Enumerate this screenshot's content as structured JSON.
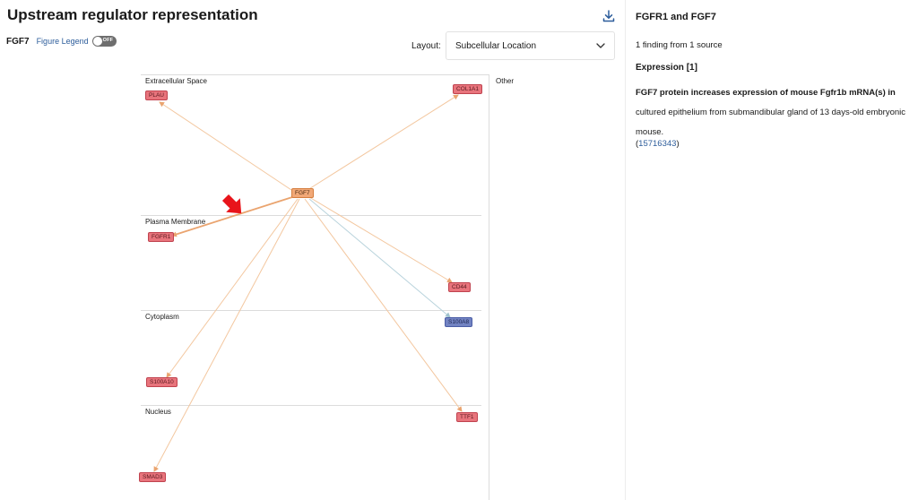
{
  "header": {
    "title": "Upstream regulator representation",
    "download_icon": "download-icon"
  },
  "toolbar": {
    "regulator": "FGF7",
    "legend_label": "Figure Legend",
    "legend_toggle_state": "OFF",
    "layout_label": "Layout:",
    "layout_value": "Subcellular Location",
    "chevron_icon": "chevron-down-icon"
  },
  "diagram": {
    "zones": {
      "extracellular": "Extracellular Space",
      "plasma_membrane": "Plasma Membrane",
      "cytoplasm": "Cytoplasm",
      "nucleus": "Nucleus",
      "other": "Other"
    },
    "nodes": {
      "fgf7": "FGF7",
      "plau": "PLAU",
      "col1a1": "COL1A1",
      "fgfr1": "FGFR1",
      "cd44": "CD44",
      "s100a8": "S100A8",
      "s100a10": "S100A10",
      "ttf1": "TTF1",
      "smad3": "SMAD3"
    },
    "colors": {
      "upregulated": "#e8747c",
      "downregulated": "#7283c2",
      "regulator": "#f1a877",
      "edge_activation": "#f3c79f",
      "edge_selected": "#eaa46f",
      "edge_inhibition": "#b9d3dc",
      "pointer_arrow": "#e8141b"
    },
    "selected_edge_marker_icon": "red-arrow-pointer-icon"
  },
  "side_panel": {
    "title": "FGFR1 and FGF7",
    "sources": "1 finding from 1 source",
    "section": "Expression [1]",
    "finding_bold": "FGF7 protein increases expression of mouse Fgfr1b mRNA(s) in",
    "finding_rest": "cultured epithelium from submandibular gland of 13 days-old embryonic mouse.",
    "ref_open": "(",
    "ref_id": "15716343",
    "ref_close": ")"
  }
}
